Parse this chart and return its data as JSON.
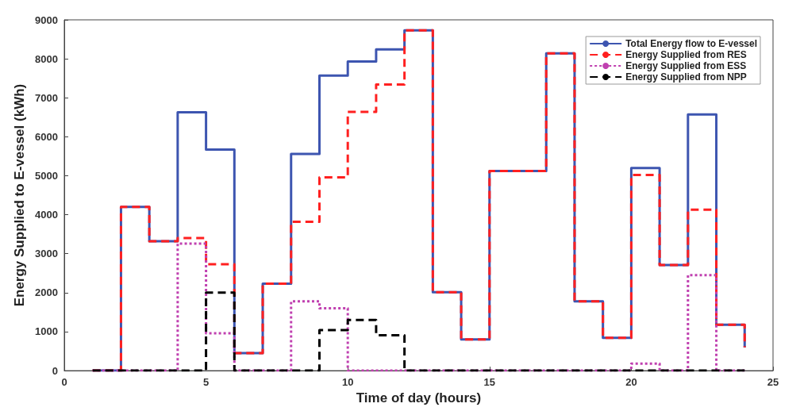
{
  "chart_data": {
    "type": "step",
    "xlabel": "Time of day (hours)",
    "ylabel": "Energy Supplied to E-vessel (kWh)",
    "x": [
      1,
      2,
      3,
      4,
      5,
      6,
      7,
      8,
      9,
      10,
      11,
      12,
      13,
      14,
      15,
      16,
      17,
      18,
      19,
      20,
      21,
      22,
      23,
      24
    ],
    "xlim": [
      0,
      25
    ],
    "xticks": [
      0,
      5,
      10,
      15,
      20,
      25
    ],
    "ylim": [
      0,
      9000
    ],
    "yticks": [
      0,
      1000,
      2000,
      3000,
      4000,
      5000,
      6000,
      7000,
      8000,
      9000
    ],
    "grid": false,
    "legend": "top right",
    "marker": "none",
    "series": [
      {
        "name": "Total Energy flow to E-vessel",
        "color": "#3d55b0",
        "line_style": "solid",
        "values": [
          0,
          4200,
          3320,
          6630,
          5670,
          450,
          2230,
          5560,
          7570,
          7930,
          8240,
          8730,
          2010,
          800,
          5120,
          5120,
          8140,
          1780,
          840,
          5200,
          2710,
          6570,
          1180,
          600
        ]
      },
      {
        "name": "Energy Supplied from RES",
        "color": "#ff2020",
        "line_style": "dashed",
        "values": [
          0,
          4200,
          3320,
          3400,
          2730,
          450,
          2230,
          3820,
          4960,
          6640,
          7340,
          8730,
          2010,
          800,
          5120,
          5120,
          8140,
          1780,
          840,
          5020,
          2710,
          4130,
          1180,
          600
        ]
      },
      {
        "name": "Energy Supplied from ESS",
        "color": "#c040b0",
        "line_style": "dotted",
        "values": [
          0,
          0,
          0,
          3260,
          960,
          0,
          0,
          1780,
          1600,
          0,
          0,
          0,
          0,
          0,
          0,
          0,
          0,
          0,
          0,
          180,
          0,
          2450,
          0,
          0
        ]
      },
      {
        "name": "Energy Supplied from NPP",
        "color": "#000000",
        "line_style": "dashed",
        "values": [
          0,
          0,
          0,
          0,
          2000,
          0,
          0,
          0,
          1040,
          1300,
          910,
          0,
          0,
          0,
          0,
          0,
          0,
          0,
          0,
          0,
          0,
          0,
          0,
          0
        ]
      }
    ]
  }
}
